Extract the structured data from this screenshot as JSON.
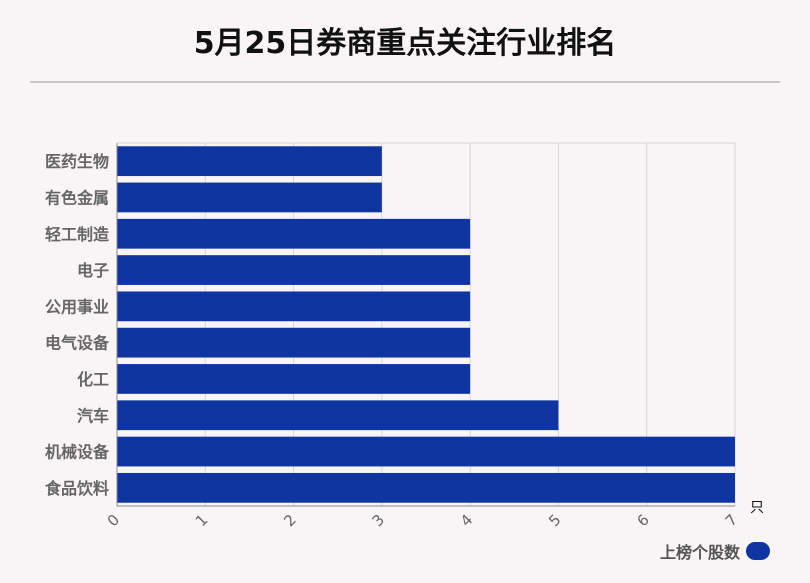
{
  "chart_data": {
    "type": "bar",
    "orientation": "horizontal",
    "title": "5月25日券商重点关注行业排名",
    "categories": [
      "医药生物",
      "有色金属",
      "轻工制造",
      "电子",
      "公用事业",
      "电气设备",
      "化工",
      "汽车",
      "机械设备",
      "食品饮料"
    ],
    "series": [
      {
        "name": "上榜个股数",
        "values": [
          3,
          3,
          4,
          4,
          4,
          4,
          4,
          5,
          7,
          7
        ]
      }
    ],
    "xlim": [
      0,
      7
    ],
    "x_ticks": [
      "0",
      "1",
      "2",
      "3",
      "4",
      "5",
      "6",
      "7"
    ],
    "x_unit": "只",
    "grid": true,
    "legend": "bottom-right",
    "bar_color": "#0e35a0"
  }
}
